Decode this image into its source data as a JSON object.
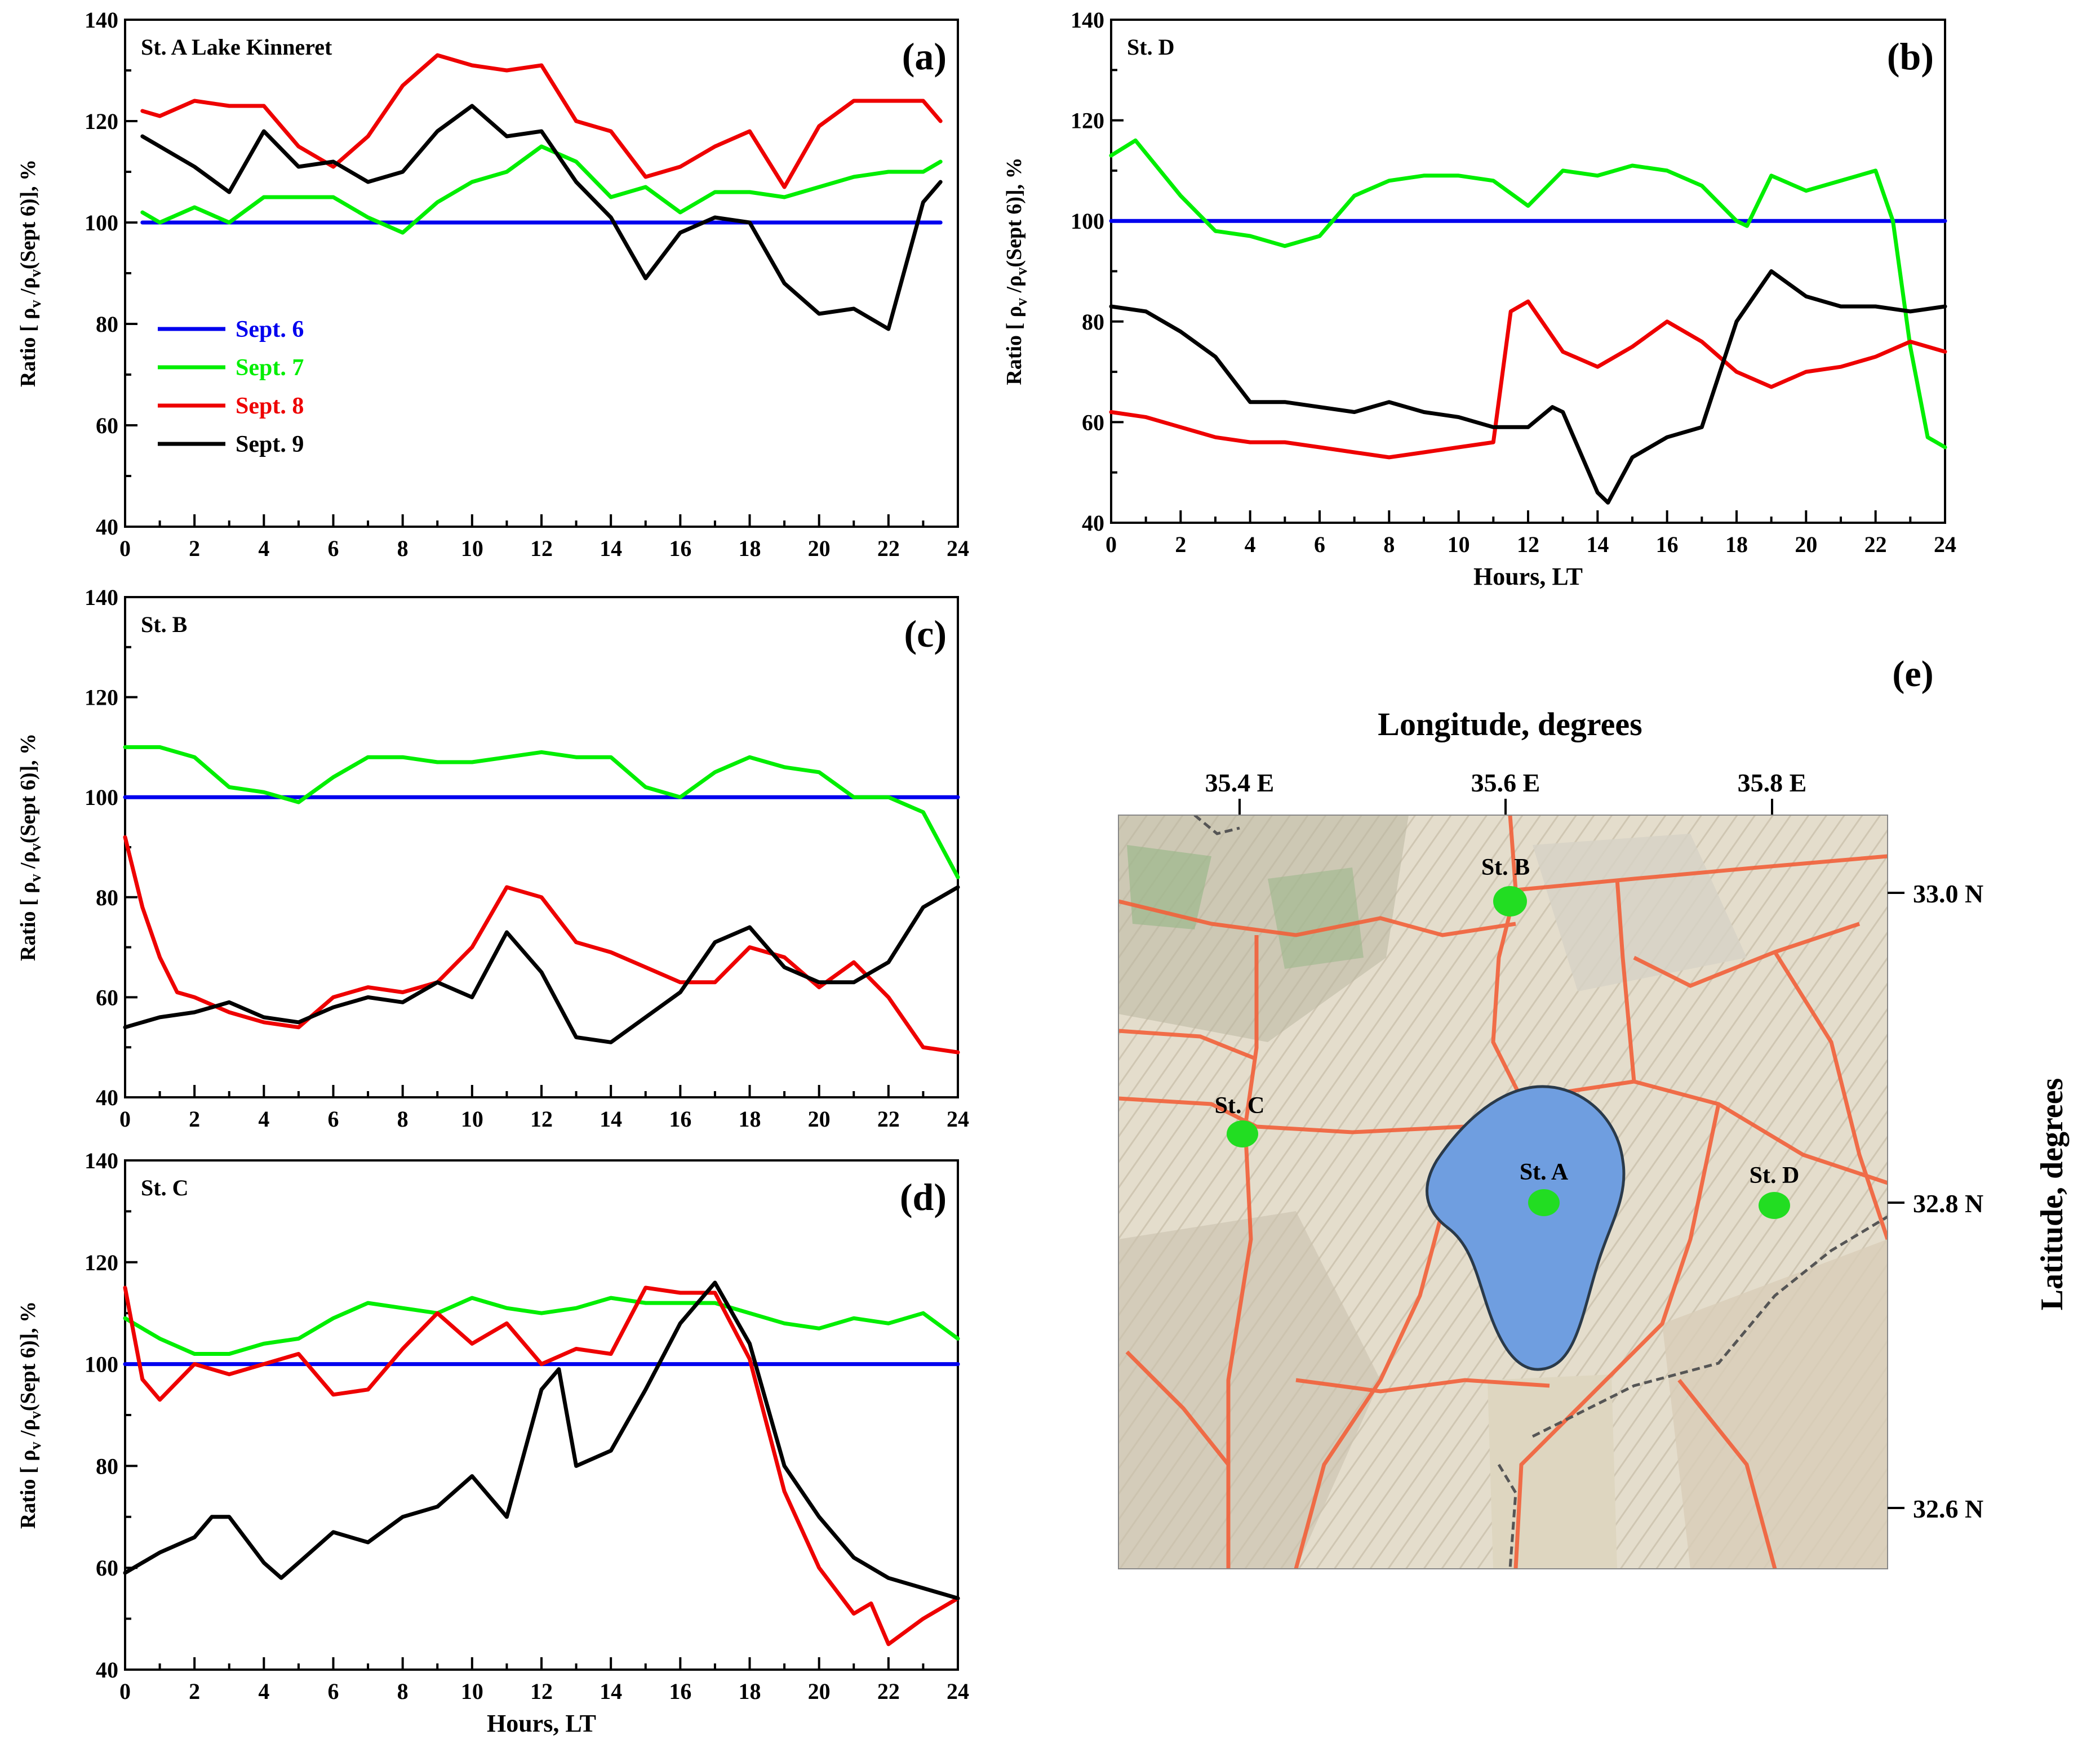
{
  "figure": {
    "map_panel": {
      "label": "(e)",
      "x_axis_title": "Longitude,  degrees",
      "y_axis_title": "Latitude,  degrees",
      "lon_ticks": [
        "35.4 E",
        "35.6 E",
        "35.8 E"
      ],
      "lat_ticks": [
        "33.0 N",
        "32.8 N",
        "32.6 N"
      ],
      "stations": [
        {
          "name": "St. B",
          "lon": 35.6,
          "lat": 32.99
        },
        {
          "name": "St. C",
          "lon": 35.4,
          "lat": 32.86
        },
        {
          "name": "St. A",
          "lon": 35.63,
          "lat": 32.81
        },
        {
          "name": "St. D",
          "lon": 35.8,
          "lat": 32.81
        }
      ],
      "colors": {
        "station": "#22dd22",
        "lake": "#6f9ee0",
        "roads": "#f2603a",
        "terrain": "#e2dccb"
      }
    }
  },
  "chart_data": [
    {
      "type": "line",
      "id": "a",
      "panel_label": "(a)",
      "station_text": "St. A  Lake Kinneret",
      "ylabel_parts": [
        "Ratio [ ρ",
        "v",
        " /ρ",
        "v",
        "(Sept 6)],  %"
      ],
      "xlabel": "",
      "xlim": [
        0,
        24
      ],
      "ylim": [
        40,
        140
      ],
      "x_ticks": [
        "0",
        "2",
        "4",
        "6",
        "8",
        "10",
        "12",
        "14",
        "16",
        "18",
        "20",
        "22",
        "24"
      ],
      "y_ticks": [
        "40",
        "60",
        "80",
        "100",
        "120",
        "140"
      ],
      "legend": {
        "position": "left-middle",
        "entries": [
          "Sept. 6",
          "Sept. 7",
          "Sept. 8",
          "Sept. 9"
        ]
      },
      "series": [
        {
          "name": "Sept. 6",
          "color": "#0000ee",
          "x": [
            0.5,
            23.5
          ],
          "y": [
            100,
            100
          ]
        },
        {
          "name": "Sept. 7",
          "color": "#00ee00",
          "x": [
            0.5,
            1,
            2,
            3,
            4,
            5,
            6,
            7,
            8,
            9,
            10,
            11,
            12,
            13,
            14,
            15,
            16,
            17,
            18,
            19,
            20,
            21,
            22,
            23,
            23.5
          ],
          "y": [
            102,
            100,
            103,
            100,
            105,
            105,
            105,
            101,
            98,
            104,
            108,
            110,
            115,
            112,
            105,
            107,
            102,
            106,
            106,
            105,
            107,
            109,
            110,
            110,
            112
          ]
        },
        {
          "name": "Sept. 8",
          "color": "#ee0000",
          "x": [
            0.5,
            1,
            2,
            3,
            4,
            5,
            6,
            7,
            8,
            9,
            10,
            11,
            12,
            13,
            14,
            15,
            16,
            17,
            18,
            19,
            20,
            21,
            22,
            23,
            23.5
          ],
          "y": [
            122,
            121,
            124,
            123,
            123,
            115,
            111,
            117,
            127,
            133,
            131,
            130,
            131,
            120,
            118,
            109,
            111,
            115,
            118,
            107,
            119,
            124,
            124,
            124,
            120
          ]
        },
        {
          "name": "Sept. 9",
          "color": "#000000",
          "x": [
            0.5,
            1,
            2,
            3,
            4,
            5,
            6,
            7,
            8,
            9,
            10,
            11,
            12,
            13,
            14,
            15,
            16,
            17,
            18,
            19,
            20,
            21,
            22,
            23,
            23.5
          ],
          "y": [
            117,
            115,
            111,
            106,
            118,
            111,
            112,
            108,
            110,
            118,
            123,
            117,
            118,
            108,
            101,
            89,
            98,
            101,
            100,
            88,
            82,
            83,
            79,
            104,
            108
          ]
        }
      ]
    },
    {
      "type": "line",
      "id": "b",
      "panel_label": "(b)",
      "station_text": "St. D",
      "ylabel_parts": [
        "Ratio [ ρ",
        "v",
        " /ρ",
        "v",
        "(Sept 6)],  %"
      ],
      "xlabel": "Hours,  LT",
      "xlim": [
        0,
        24
      ],
      "ylim": [
        40,
        140
      ],
      "x_ticks": [
        "0",
        "2",
        "4",
        "6",
        "8",
        "10",
        "12",
        "14",
        "16",
        "18",
        "20",
        "22",
        "24"
      ],
      "y_ticks": [
        "40",
        "60",
        "80",
        "100",
        "120",
        "140"
      ],
      "series": [
        {
          "name": "Sept. 6",
          "color": "#0000ee",
          "x": [
            0,
            24
          ],
          "y": [
            100,
            100
          ]
        },
        {
          "name": "Sept. 7",
          "color": "#00ee00",
          "x": [
            0,
            0.7,
            2,
            3,
            4,
            5,
            6,
            7,
            8,
            9,
            10,
            11,
            12,
            13,
            14,
            15,
            16,
            17,
            18,
            18.3,
            19,
            20,
            21,
            22,
            22.5,
            23,
            23.5,
            24
          ],
          "y": [
            113,
            116,
            105,
            98,
            97,
            95,
            97,
            105,
            108,
            109,
            109,
            108,
            103,
            110,
            109,
            111,
            110,
            107,
            100,
            99,
            109,
            106,
            108,
            110,
            100,
            75,
            57,
            55
          ]
        },
        {
          "name": "Sept. 8",
          "color": "#ee0000",
          "x": [
            0,
            1,
            2,
            3,
            4,
            5,
            6,
            7,
            8,
            9,
            10,
            11,
            11.5,
            12,
            13,
            14,
            15,
            16,
            17,
            18,
            19,
            20,
            21,
            22,
            23,
            24
          ],
          "y": [
            62,
            61,
            59,
            57,
            56,
            56,
            55,
            54,
            53,
            54,
            55,
            56,
            82,
            84,
            74,
            71,
            75,
            80,
            76,
            70,
            67,
            70,
            71,
            73,
            76,
            74
          ]
        },
        {
          "name": "Sept. 9",
          "color": "#000000",
          "x": [
            0,
            1,
            2,
            3,
            4,
            5,
            6,
            7,
            8,
            9,
            10,
            11,
            12,
            12.7,
            13,
            14,
            14.3,
            15,
            16,
            17,
            18,
            19,
            20,
            21,
            22,
            23,
            24
          ],
          "y": [
            83,
            82,
            78,
            73,
            64,
            64,
            63,
            62,
            64,
            62,
            61,
            59,
            59,
            63,
            62,
            46,
            44,
            53,
            57,
            59,
            80,
            90,
            85,
            83,
            83,
            82,
            83
          ]
        }
      ]
    },
    {
      "type": "line",
      "id": "c",
      "panel_label": "(c)",
      "station_text": "St. B",
      "ylabel_parts": [
        "Ratio [ ρ",
        "v",
        " /ρ",
        "v",
        "(Sept 6)],  %"
      ],
      "xlabel": "",
      "xlim": [
        0,
        24
      ],
      "ylim": [
        40,
        140
      ],
      "x_ticks": [
        "0",
        "2",
        "4",
        "6",
        "8",
        "10",
        "12",
        "14",
        "16",
        "18",
        "20",
        "22",
        "24"
      ],
      "y_ticks": [
        "40",
        "60",
        "80",
        "100",
        "120",
        "140"
      ],
      "series": [
        {
          "name": "Sept. 6",
          "color": "#0000ee",
          "x": [
            0,
            24
          ],
          "y": [
            100,
            100
          ]
        },
        {
          "name": "Sept. 7",
          "color": "#00ee00",
          "x": [
            0,
            1,
            2,
            3,
            4,
            5,
            6,
            7,
            8,
            9,
            10,
            11,
            12,
            13,
            14,
            15,
            16,
            17,
            18,
            19,
            20,
            21,
            22,
            23,
            24
          ],
          "y": [
            110,
            110,
            108,
            102,
            101,
            99,
            104,
            108,
            108,
            107,
            107,
            108,
            109,
            108,
            108,
            102,
            100,
            105,
            108,
            106,
            105,
            100,
            100,
            97,
            84
          ]
        },
        {
          "name": "Sept. 8",
          "color": "#ee0000",
          "x": [
            0,
            0.5,
            1,
            1.5,
            2,
            3,
            4,
            5,
            6,
            7,
            8,
            9,
            10,
            11,
            12,
            13,
            14,
            15,
            16,
            17,
            18,
            19,
            20,
            21,
            22,
            23,
            24
          ],
          "y": [
            92,
            78,
            68,
            61,
            60,
            57,
            55,
            54,
            60,
            62,
            61,
            63,
            70,
            82,
            80,
            71,
            69,
            66,
            63,
            63,
            70,
            68,
            62,
            67,
            60,
            50,
            49
          ]
        },
        {
          "name": "Sept. 9",
          "color": "#000000",
          "x": [
            0,
            1,
            2,
            3,
            4,
            5,
            6,
            7,
            8,
            9,
            10,
            11,
            12,
            13,
            14,
            15,
            16,
            17,
            18,
            19,
            20,
            21,
            22,
            23,
            24
          ],
          "y": [
            54,
            56,
            57,
            59,
            56,
            55,
            58,
            60,
            59,
            63,
            60,
            73,
            65,
            52,
            51,
            56,
            61,
            71,
            74,
            66,
            63,
            63,
            67,
            78,
            82
          ]
        }
      ]
    },
    {
      "type": "line",
      "id": "d",
      "panel_label": "(d)",
      "station_text": "St. C",
      "ylabel_parts": [
        "Ratio [ ρ",
        "v",
        " /ρ",
        "v",
        "(Sept 6)],  %"
      ],
      "xlabel": "Hours,  LT",
      "xlim": [
        0,
        24
      ],
      "ylim": [
        40,
        140
      ],
      "x_ticks": [
        "0",
        "2",
        "4",
        "6",
        "8",
        "10",
        "12",
        "14",
        "16",
        "18",
        "20",
        "22",
        "24"
      ],
      "y_ticks": [
        "40",
        "60",
        "80",
        "100",
        "120",
        "140"
      ],
      "series": [
        {
          "name": "Sept. 6",
          "color": "#0000ee",
          "x": [
            0,
            24
          ],
          "y": [
            100,
            100
          ]
        },
        {
          "name": "Sept. 7",
          "color": "#00ee00",
          "x": [
            0,
            1,
            2,
            3,
            4,
            5,
            6,
            7,
            8,
            9,
            10,
            11,
            12,
            13,
            14,
            15,
            16,
            17,
            18,
            19,
            20,
            21,
            22,
            23,
            24
          ],
          "y": [
            109,
            105,
            102,
            102,
            104,
            105,
            109,
            112,
            111,
            110,
            113,
            111,
            110,
            111,
            113,
            112,
            112,
            112,
            110,
            108,
            107,
            109,
            108,
            110,
            105
          ]
        },
        {
          "name": "Sept. 8",
          "color": "#ee0000",
          "x": [
            0,
            0.5,
            1,
            2,
            3,
            4,
            5,
            6,
            7,
            8,
            9,
            10,
            11,
            12,
            13,
            14,
            15,
            16,
            17,
            18,
            19,
            20,
            21,
            21.5,
            22,
            23,
            24
          ],
          "y": [
            115,
            97,
            93,
            100,
            98,
            100,
            102,
            94,
            95,
            103,
            110,
            104,
            108,
            100,
            103,
            102,
            115,
            114,
            114,
            101,
            75,
            60,
            51,
            53,
            45,
            50,
            54
          ]
        },
        {
          "name": "Sept. 9",
          "color": "#000000",
          "x": [
            0,
            1,
            2,
            2.5,
            3,
            4,
            4.5,
            5,
            6,
            7,
            8,
            9,
            10,
            11,
            12,
            12.5,
            13,
            14,
            15,
            16,
            17,
            18,
            19,
            20,
            21,
            22,
            23,
            24
          ],
          "y": [
            59,
            63,
            66,
            70,
            70,
            61,
            58,
            61,
            67,
            65,
            70,
            72,
            78,
            70,
            95,
            99,
            80,
            83,
            95,
            108,
            116,
            104,
            80,
            70,
            62,
            58,
            56,
            54
          ]
        }
      ]
    }
  ]
}
